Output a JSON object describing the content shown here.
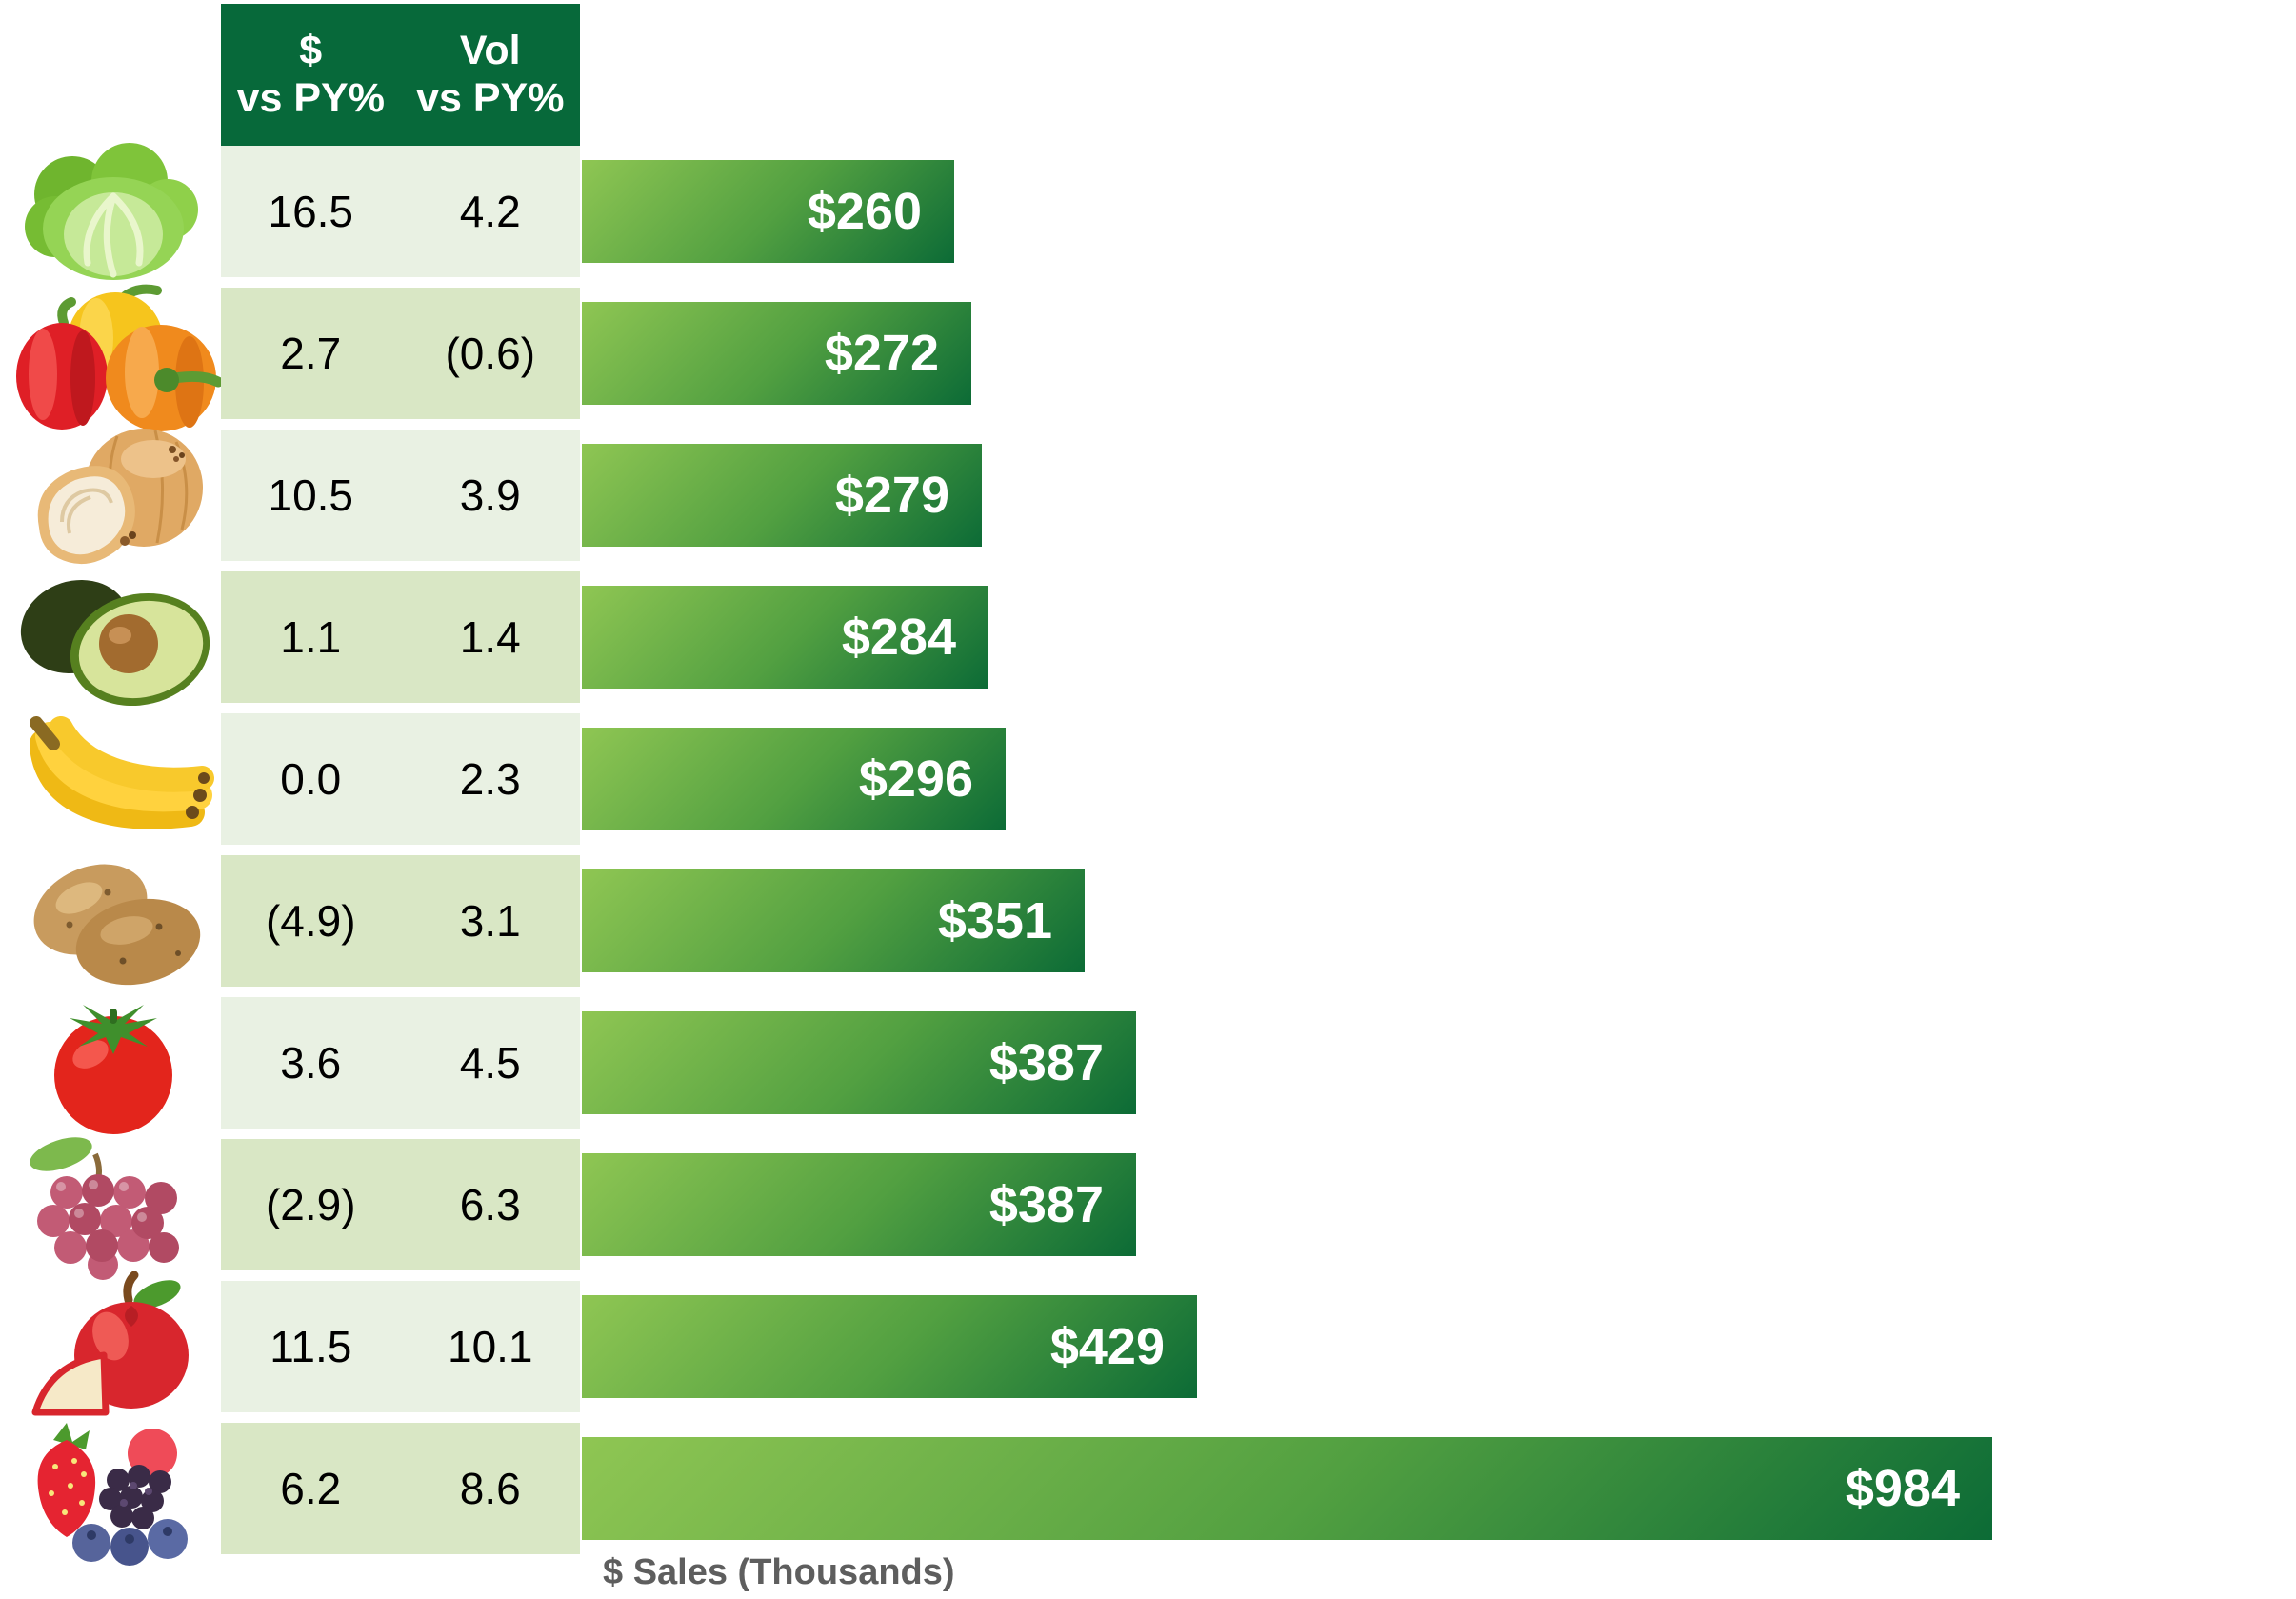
{
  "header": {
    "col1_line1": "$",
    "col1_line2": "vs PY%",
    "col2_line1": "Vol",
    "col2_line2": "vs PY%"
  },
  "rows": [
    {
      "item": "lettuce",
      "icon": "lettuce",
      "dollar_vs_py": "16.5",
      "vol_vs_py": "4.2",
      "sales": 260,
      "sales_label": "$260"
    },
    {
      "item": "bell-peppers",
      "icon": "peppers",
      "dollar_vs_py": "2.7",
      "vol_vs_py": "(0.6)",
      "sales": 272,
      "sales_label": "$272"
    },
    {
      "item": "onions",
      "icon": "onion",
      "dollar_vs_py": "10.5",
      "vol_vs_py": "3.9",
      "sales": 279,
      "sales_label": "$279"
    },
    {
      "item": "avocados",
      "icon": "avocado",
      "dollar_vs_py": "1.1",
      "vol_vs_py": "1.4",
      "sales": 284,
      "sales_label": "$284"
    },
    {
      "item": "bananas",
      "icon": "bananas",
      "dollar_vs_py": "0.0",
      "vol_vs_py": "2.3",
      "sales": 296,
      "sales_label": "$296"
    },
    {
      "item": "potatoes",
      "icon": "potatoes",
      "dollar_vs_py": "(4.9)",
      "vol_vs_py": "3.1",
      "sales": 351,
      "sales_label": "$351"
    },
    {
      "item": "tomatoes",
      "icon": "tomato",
      "dollar_vs_py": "3.6",
      "vol_vs_py": "4.5",
      "sales": 387,
      "sales_label": "$387"
    },
    {
      "item": "grapes",
      "icon": "grapes",
      "dollar_vs_py": "(2.9)",
      "vol_vs_py": "6.3",
      "sales": 387,
      "sales_label": "$387"
    },
    {
      "item": "apples",
      "icon": "apple",
      "dollar_vs_py": "11.5",
      "vol_vs_py": "10.1",
      "sales": 429,
      "sales_label": "$429"
    },
    {
      "item": "berries",
      "icon": "berries",
      "dollar_vs_py": "6.2",
      "vol_vs_py": "8.6",
      "sales": 984,
      "sales_label": "$984"
    }
  ],
  "chart_data": {
    "type": "bar",
    "orientation": "horizontal",
    "title": "",
    "xlabel": "$ Sales (Thousands)",
    "ylabel": "",
    "categories": [
      "lettuce",
      "bell-peppers",
      "onions",
      "avocados",
      "bananas",
      "potatoes",
      "tomatoes",
      "grapes",
      "apples",
      "berries"
    ],
    "series": [
      {
        "name": "$ Sales (Thousands)",
        "values": [
          260,
          272,
          279,
          284,
          296,
          351,
          387,
          387,
          429,
          984
        ]
      },
      {
        "name": "$ vs PY%",
        "values": [
          16.5,
          2.7,
          10.5,
          1.1,
          0.0,
          -4.9,
          3.6,
          -2.9,
          11.5,
          6.2
        ]
      },
      {
        "name": "Vol vs PY%",
        "values": [
          4.2,
          -0.6,
          3.9,
          1.4,
          2.3,
          3.1,
          4.5,
          6.3,
          10.1,
          8.6
        ]
      }
    ],
    "bar_value_labels": [
      "$260",
      "$272",
      "$279",
      "$284",
      "$296",
      "$351",
      "$387",
      "$387",
      "$429",
      "$984"
    ],
    "negative_number_format": "parentheses",
    "xlim": [
      0,
      1000
    ],
    "grid": false,
    "legend": false
  },
  "colors": {
    "header_bg": "#07693A",
    "header_text": "#FFFFFF",
    "row_odd": "#E9F1E3",
    "row_even": "#D9E7C5",
    "bar_light": "#8FC653",
    "bar_mid": "#52A041",
    "bar_dark": "#0C6B36",
    "bar_label": "#FFFFFF",
    "table_text": "#000000",
    "axis_label": "#5E5E5E"
  }
}
